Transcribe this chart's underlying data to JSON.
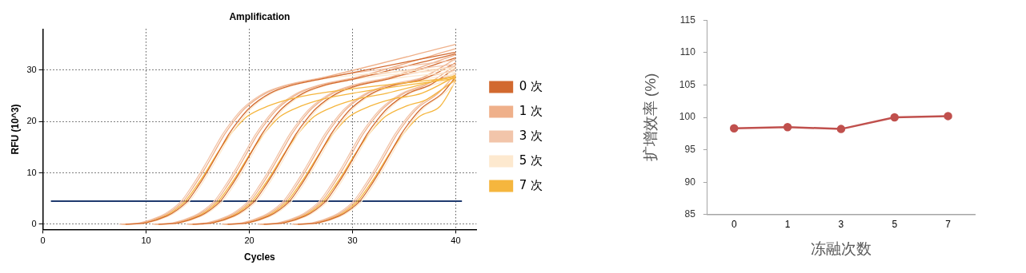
{
  "chart_data": [
    {
      "type": "line",
      "title": "Amplification",
      "xlabel": "Cycles",
      "ylabel": "RFU (10^3)",
      "xlim": [
        0,
        42
      ],
      "xticks": [
        0,
        10,
        20,
        30,
        40
      ],
      "ylim": [
        -1,
        38
      ],
      "yticks": [
        0,
        10,
        20,
        30
      ],
      "grid": true,
      "legend": "right",
      "marker": "none",
      "ref_lines": [
        {
          "axis": "y",
          "value": 4.5,
          "color": "#1f3a6e"
        }
      ],
      "series": [
        {
          "name": "0 次",
          "color": "#d2692f",
          "x": [
            8,
            10,
            12,
            13,
            14,
            15,
            16,
            17,
            18,
            19,
            20,
            22,
            24,
            27,
            40
          ],
          "values": [
            0,
            0.3,
            1.6,
            2.8,
            4.5,
            7.3,
            10.5,
            14,
            17.5,
            20.3,
            22.6,
            25.5,
            27,
            28.3,
            33.5
          ]
        },
        {
          "name": "1 次",
          "color": "#efb08a",
          "x": [
            7.6,
            9.6,
            11.6,
            12.6,
            13.6,
            14.6,
            15.6,
            16.6,
            17.6,
            18.6,
            19.6,
            21.6,
            23.6,
            26.6,
            40
          ],
          "values": [
            0,
            0.3,
            1.6,
            2.8,
            4.5,
            7.3,
            10.5,
            14,
            17.5,
            20.3,
            22.6,
            25.5,
            27,
            28.3,
            35
          ]
        },
        {
          "name": "3 次",
          "color": "#f2c5aa",
          "x": [
            7.4,
            9.4,
            11.4,
            12.4,
            13.4,
            14.4,
            15.4,
            16.4,
            17.4,
            18.4,
            19.4,
            21.4,
            23.4,
            26.4,
            40
          ],
          "values": [
            0,
            0.3,
            1.6,
            2.8,
            4.5,
            7.3,
            10.5,
            14,
            17.5,
            20.3,
            22.6,
            25.5,
            27,
            28.3,
            32
          ]
        },
        {
          "name": "5 次",
          "color": "#fde9cf",
          "x": [
            8.2,
            10.2,
            12.2,
            13.2,
            14.2,
            15.2,
            16.2,
            17.2,
            18.2,
            19.2,
            20.2,
            22.2,
            24.2,
            27.2,
            40
          ],
          "values": [
            0,
            0.3,
            1.6,
            2.8,
            4.5,
            7.3,
            10.5,
            14,
            17.5,
            20.3,
            22.6,
            25.5,
            27,
            28.3,
            30.5
          ]
        },
        {
          "name": "7 次",
          "color": "#f5b63e",
          "x": [
            7.8,
            9.8,
            11.8,
            12.8,
            13.8,
            14.8,
            15.8,
            16.8,
            17.8,
            18.8,
            19.8,
            21.8,
            23.8,
            26.8,
            40
          ],
          "values": [
            0,
            0.3,
            1.6,
            2.8,
            4.5,
            7.2,
            10.2,
            13.5,
            16.5,
            19,
            21,
            23,
            24.3,
            25.5,
            28.6
          ]
        },
        {
          "color": "#d2692f",
          "x": [
            11.2,
            13.2,
            15.2,
            16.2,
            17.2,
            18.2,
            19.2,
            20.2,
            21.2,
            22.2,
            23.2,
            25.2,
            27.2,
            30.2,
            40
          ],
          "values": [
            0,
            0.3,
            1.6,
            2.8,
            4.5,
            7.3,
            10.5,
            14,
            17.5,
            20.3,
            22.6,
            25.5,
            27,
            28.3,
            33.2
          ]
        },
        {
          "color": "#efb08a",
          "x": [
            10.8,
            12.8,
            14.8,
            15.8,
            16.8,
            17.8,
            18.8,
            19.8,
            20.8,
            21.8,
            22.8,
            24.8,
            26.8,
            29.8,
            40
          ],
          "values": [
            0,
            0.3,
            1.6,
            2.8,
            4.5,
            7.3,
            10.5,
            14,
            17.5,
            20.3,
            22.6,
            25.5,
            27,
            28.3,
            34.2
          ]
        },
        {
          "color": "#f2c5aa",
          "x": [
            10.6,
            12.6,
            14.6,
            15.6,
            16.6,
            17.6,
            18.6,
            19.6,
            20.6,
            21.6,
            22.6,
            24.6,
            26.6,
            29.6,
            40
          ],
          "values": [
            0,
            0.3,
            1.6,
            2.8,
            4.5,
            7.3,
            10.5,
            14,
            17.5,
            20.3,
            22.6,
            25.5,
            27,
            28.3,
            31.2
          ]
        },
        {
          "color": "#fde9cf",
          "x": [
            11.4,
            13.4,
            15.4,
            16.4,
            17.4,
            18.4,
            19.4,
            20.4,
            21.4,
            22.4,
            23.4,
            25.4,
            27.4,
            30.4,
            40
          ],
          "values": [
            0,
            0.3,
            1.6,
            2.8,
            4.5,
            7.3,
            10.5,
            14,
            17.5,
            20.3,
            22.6,
            25.5,
            27,
            28.3,
            30.2
          ]
        },
        {
          "color": "#f5b63e",
          "x": [
            11,
            13,
            15,
            16,
            17,
            18,
            19,
            20,
            21,
            22,
            23,
            25,
            27,
            30,
            40
          ],
          "values": [
            0,
            0.3,
            1.6,
            2.8,
            4.5,
            7.2,
            10.2,
            13.5,
            16.5,
            19,
            21,
            23,
            24.3,
            25.5,
            28.4
          ]
        },
        {
          "color": "#d2692f",
          "x": [
            14.5,
            16.5,
            18.5,
            19.5,
            20.5,
            21.5,
            22.5,
            23.5,
            24.5,
            25.5,
            26.5,
            28.5,
            30.5,
            33.5,
            40
          ],
          "values": [
            0,
            0.3,
            1.6,
            2.8,
            4.5,
            7.3,
            10.5,
            14,
            17.5,
            20.3,
            22.6,
            25.5,
            27,
            28.3,
            32.4
          ]
        },
        {
          "color": "#efb08a",
          "x": [
            14.1,
            16.1,
            18.1,
            19.1,
            20.1,
            21.1,
            22.1,
            23.1,
            24.1,
            25.1,
            26.1,
            28.1,
            30.1,
            33.1,
            40
          ],
          "values": [
            0,
            0.3,
            1.6,
            2.8,
            4.5,
            7.3,
            10.5,
            14,
            17.5,
            20.3,
            22.6,
            25.5,
            27,
            28.3,
            33
          ]
        },
        {
          "color": "#f2c5aa",
          "x": [
            13.9,
            15.9,
            17.9,
            18.9,
            19.9,
            20.9,
            21.9,
            22.9,
            23.9,
            24.9,
            25.9,
            27.9,
            29.9,
            32.9,
            40
          ],
          "values": [
            0,
            0.3,
            1.6,
            2.8,
            4.5,
            7.3,
            10.5,
            14,
            17.5,
            20.3,
            22.6,
            25.5,
            27,
            28.3,
            30.8
          ]
        },
        {
          "color": "#fde9cf",
          "x": [
            14.7,
            16.7,
            18.7,
            19.7,
            20.7,
            21.7,
            22.7,
            23.7,
            24.7,
            25.7,
            26.7,
            28.7,
            30.7,
            33.7,
            40
          ],
          "values": [
            0,
            0.3,
            1.6,
            2.8,
            4.5,
            7.3,
            10.5,
            14,
            17.5,
            20.3,
            22.6,
            25.5,
            27,
            28.3,
            29.6
          ]
        },
        {
          "color": "#f5b63e",
          "x": [
            14.3,
            16.3,
            18.3,
            19.3,
            20.3,
            21.3,
            22.3,
            23.3,
            24.3,
            25.3,
            26.3,
            28.3,
            30.3,
            33.3,
            40
          ],
          "values": [
            0,
            0.3,
            1.6,
            2.8,
            4.5,
            7.2,
            10.2,
            13.5,
            16.5,
            19,
            21,
            23,
            24.3,
            25.5,
            29
          ]
        },
        {
          "color": "#d2692f",
          "x": [
            17.9,
            19.9,
            21.9,
            22.9,
            23.9,
            24.9,
            25.9,
            26.9,
            27.9,
            28.9,
            29.9,
            31.9,
            33.9,
            36.9,
            40
          ],
          "values": [
            0,
            0.3,
            1.6,
            2.8,
            4.5,
            7.3,
            10.5,
            14,
            17.5,
            20.3,
            22.6,
            25.5,
            27,
            28.3,
            31.4
          ]
        },
        {
          "color": "#efb08a",
          "x": [
            17.5,
            19.5,
            21.5,
            22.5,
            23.5,
            24.5,
            25.5,
            26.5,
            27.5,
            28.5,
            29.5,
            31.5,
            33.5,
            36.5,
            40
          ],
          "values": [
            0,
            0.3,
            1.6,
            2.8,
            4.5,
            7.3,
            10.5,
            14,
            17.5,
            20.3,
            22.6,
            25.5,
            27,
            28.3,
            32.2
          ]
        },
        {
          "color": "#f2c5aa",
          "x": [
            17.3,
            19.3,
            21.3,
            22.3,
            23.3,
            24.3,
            25.3,
            26.3,
            27.3,
            28.3,
            29.3,
            31.3,
            33.3,
            36.3,
            40
          ],
          "values": [
            0,
            0.3,
            1.6,
            2.8,
            4.5,
            7.3,
            10.5,
            14,
            17.5,
            20.3,
            22.6,
            25.5,
            27,
            28.3,
            30
          ]
        },
        {
          "color": "#fde9cf",
          "x": [
            18.1,
            20.1,
            22.1,
            23.1,
            24.1,
            25.1,
            26.1,
            27.1,
            28.1,
            29.1,
            30.1,
            32.1,
            34.1,
            37.1,
            40
          ],
          "values": [
            0,
            0.3,
            1.6,
            2.8,
            4.5,
            7.3,
            10.5,
            14,
            17.5,
            20.3,
            22.6,
            25.5,
            27,
            28.3,
            29.2
          ]
        },
        {
          "color": "#f5b63e",
          "x": [
            17.7,
            19.7,
            21.7,
            22.7,
            23.7,
            24.7,
            25.7,
            26.7,
            27.7,
            28.7,
            29.7,
            31.7,
            33.7,
            36.7,
            40
          ],
          "values": [
            0,
            0.3,
            1.6,
            2.8,
            4.5,
            7.2,
            10.2,
            13.5,
            16.5,
            19,
            21,
            23,
            24.3,
            25.5,
            28.8
          ]
        },
        {
          "color": "#d2692f",
          "x": [
            21.4,
            23.4,
            25.4,
            26.4,
            27.4,
            28.4,
            29.4,
            30.4,
            31.4,
            32.4,
            33.4,
            35.4,
            37.4,
            40
          ],
          "values": [
            0,
            0.3,
            1.6,
            2.8,
            4.5,
            7.3,
            10.5,
            14,
            17.5,
            20.3,
            22.6,
            25.5,
            27,
            30.4
          ]
        },
        {
          "color": "#efb08a",
          "x": [
            21,
            23,
            25,
            26,
            27,
            28,
            29,
            30,
            31,
            32,
            33,
            35,
            37,
            40
          ],
          "values": [
            0,
            0.3,
            1.6,
            2.8,
            4.5,
            7.3,
            10.5,
            14,
            17.5,
            20.3,
            22.6,
            25.5,
            27,
            31
          ]
        },
        {
          "color": "#f2c5aa",
          "x": [
            20.8,
            22.8,
            24.8,
            25.8,
            26.8,
            27.8,
            28.8,
            29.8,
            30.8,
            31.8,
            32.8,
            34.8,
            36.8,
            40
          ],
          "values": [
            0,
            0.3,
            1.6,
            2.8,
            4.5,
            7.3,
            10.5,
            14,
            17.5,
            20.3,
            22.6,
            25.5,
            27,
            29.4
          ]
        },
        {
          "color": "#fde9cf",
          "x": [
            21.6,
            23.6,
            25.6,
            26.6,
            27.6,
            28.6,
            29.6,
            30.6,
            31.6,
            32.6,
            33.6,
            35.6,
            37.6,
            40
          ],
          "values": [
            0,
            0.3,
            1.6,
            2.8,
            4.5,
            7.3,
            10.5,
            14,
            17.5,
            20.3,
            22.6,
            25.5,
            27,
            28.5
          ]
        },
        {
          "color": "#f5b63e",
          "x": [
            21.2,
            23.2,
            25.2,
            26.2,
            27.2,
            28.2,
            29.2,
            30.2,
            31.2,
            32.2,
            33.2,
            35.2,
            37.2,
            40
          ],
          "values": [
            0,
            0.3,
            1.6,
            2.8,
            4.5,
            7.2,
            10.2,
            13.5,
            16.5,
            19,
            21,
            23,
            24.3,
            28.2
          ]
        },
        {
          "color": "#d2692f",
          "x": [
            24.7,
            26.7,
            28.7,
            29.7,
            30.7,
            31.7,
            32.7,
            33.7,
            34.7,
            35.7,
            36.7,
            38.7,
            40
          ],
          "values": [
            0,
            0.3,
            1.6,
            2.8,
            4.5,
            7.3,
            10.5,
            14,
            17.5,
            20.3,
            22.6,
            25.5,
            28.7
          ]
        },
        {
          "color": "#efb08a",
          "x": [
            24.3,
            26.3,
            28.3,
            29.3,
            30.3,
            31.3,
            32.3,
            33.3,
            34.3,
            35.3,
            36.3,
            38.3,
            40
          ],
          "values": [
            0,
            0.3,
            1.6,
            2.8,
            4.5,
            7.3,
            10.5,
            14,
            17.5,
            20.3,
            22.6,
            25.5,
            29.3
          ]
        },
        {
          "color": "#f2c5aa",
          "x": [
            24.1,
            26.1,
            28.1,
            29.1,
            30.1,
            31.1,
            32.1,
            33.1,
            34.1,
            35.1,
            36.1,
            38.1,
            40
          ],
          "values": [
            0,
            0.3,
            1.6,
            2.8,
            4.5,
            7.3,
            10.5,
            14,
            17.5,
            20.3,
            22.6,
            25.5,
            28
          ]
        },
        {
          "color": "#fde9cf",
          "x": [
            24.9,
            26.9,
            28.9,
            29.9,
            30.9,
            31.9,
            32.9,
            33.9,
            34.9,
            35.9,
            36.9,
            38.9,
            40
          ],
          "values": [
            0,
            0.3,
            1.6,
            2.8,
            4.5,
            7.3,
            10.5,
            14,
            17.5,
            20.3,
            22.6,
            25.5,
            27.6
          ]
        },
        {
          "color": "#f5b63e",
          "x": [
            24.5,
            26.5,
            28.5,
            29.5,
            30.5,
            31.5,
            32.5,
            33.5,
            34.5,
            35.5,
            36.5,
            38.5,
            40
          ],
          "values": [
            0,
            0.3,
            1.6,
            2.8,
            4.5,
            7.2,
            10.2,
            13.5,
            16.5,
            19,
            21,
            23,
            27.9
          ]
        }
      ]
    },
    {
      "type": "line",
      "xlabel": "冻融次数",
      "ylabel": "扩增效率 (%)",
      "categories": [
        "0",
        "1",
        "3",
        "5",
        "7"
      ],
      "ylim": [
        85,
        115
      ],
      "yticks": [
        85,
        90,
        95,
        100,
        105,
        110,
        115
      ],
      "marker": "circle",
      "series": [
        {
          "color": "#c0504d",
          "values": [
            98.3,
            98.5,
            98.2,
            100,
            100.2
          ]
        }
      ]
    }
  ]
}
